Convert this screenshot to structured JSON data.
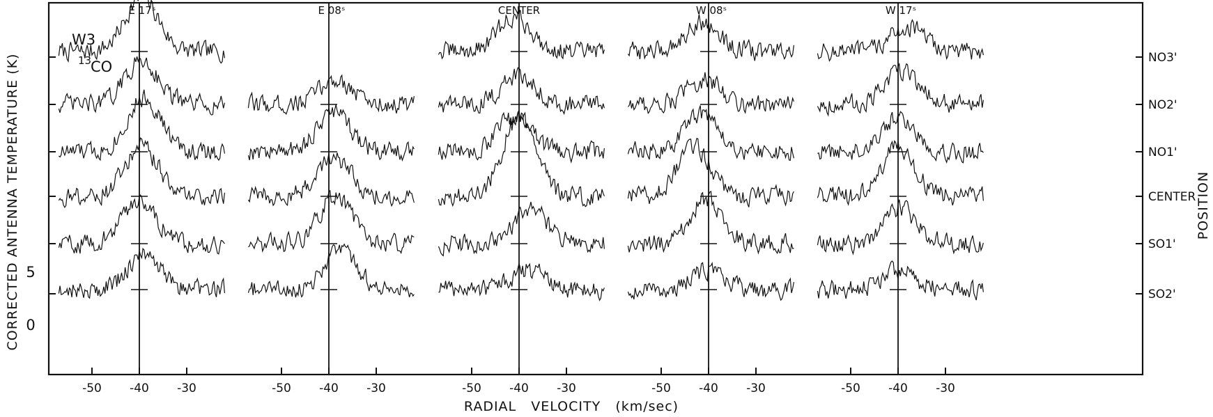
{
  "chart_data": {
    "type": "line",
    "description_type": "spectral-line grid",
    "panel_title": "W3",
    "molecule": {
      "superscript": "13",
      "name": "CO"
    },
    "xlabel": "RADIAL   VELOCITY   (km/sec)",
    "ylabel": "CORRECTED  ANTENNA  TEMPERATURE (K)",
    "right_axis_label": "POSITION",
    "xlim": [
      -57,
      -22
    ],
    "x_ticks": [
      -50,
      -40,
      -30
    ],
    "x_tick_labels": [
      "-50",
      "-40",
      "-30"
    ],
    "y_ticks": [
      0,
      5
    ],
    "y_tick_labels": [
      "0",
      "5"
    ],
    "reference_velocity": -40,
    "columns": [
      {
        "label": "E 17ˢ"
      },
      {
        "label": "E 08ˢ"
      },
      {
        "label": "CENTER"
      },
      {
        "label": "W 08ˢ"
      },
      {
        "label": "W 17ˢ"
      }
    ],
    "rows": [
      "NO3'",
      "NO2'",
      "NO1'",
      "CENTER",
      "SO1'",
      "SO2'"
    ],
    "spectra_peak_velocity": [
      [
        -39.5,
        -39.5,
        -39,
        -39.5,
        -40,
        -39
      ],
      [
        null,
        -38.5,
        -39,
        -39,
        -38.5,
        -37.5
      ],
      [
        -41,
        -40,
        -41,
        -40,
        -37.5,
        -38
      ],
      [
        -41.5,
        -41,
        -41.5,
        -43,
        -40.5,
        -40
      ],
      [
        -38,
        -39,
        -40,
        -40,
        -39.5,
        -40
      ]
    ],
    "spectra_peak_temperature": [
      [
        5.5,
        4.5,
        5.5,
        5.0,
        4.5,
        3.5
      ],
      [
        null,
        2.5,
        4.0,
        4.0,
        5.0,
        4.0
      ],
      [
        3.5,
        3.0,
        3.5,
        8.0,
        3.5,
        2.0
      ],
      [
        3.0,
        2.5,
        4.0,
        5.0,
        4.5,
        2.0
      ],
      [
        2.5,
        3.5,
        3.5,
        5.0,
        3.5,
        2.0
      ]
    ],
    "grid": false
  }
}
